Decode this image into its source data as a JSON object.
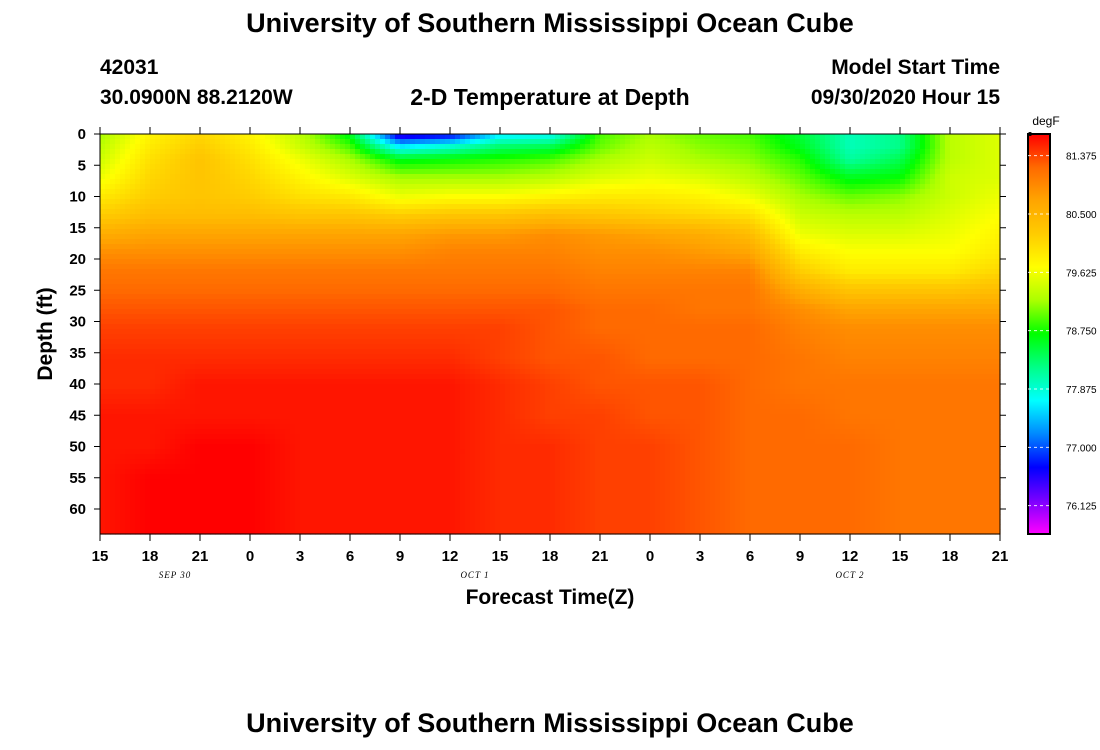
{
  "header": {
    "title_top": "University of Southern Mississippi Ocean Cube",
    "title_bottom": "University of Southern Mississippi Ocean Cube",
    "station_id": "42031",
    "station_location": "30.0900N 88.2120W",
    "plot_title": "2-D Temperature at Depth",
    "model_start_label": "Model Start Time",
    "model_start_value": "09/30/2020 Hour 15"
  },
  "chart_data": {
    "type": "heatmap",
    "title": "2-D Temperature at Depth",
    "xlabel": "Forecast Time(Z)",
    "ylabel": "Depth (ft)",
    "x_hours": [
      0,
      3,
      6,
      9,
      12,
      15,
      18,
      21,
      24,
      27,
      30,
      33,
      36,
      39,
      42,
      45,
      48,
      51,
      54
    ],
    "x_tick_labels": [
      "15",
      "18",
      "21",
      "0",
      "3",
      "6",
      "9",
      "12",
      "15",
      "18",
      "21",
      "0",
      "3",
      "6",
      "9",
      "12",
      "15",
      "18",
      "21"
    ],
    "day_labels": [
      {
        "hour": 4.5,
        "text": "SEP 30"
      },
      {
        "hour": 22.5,
        "text": "OCT 1"
      },
      {
        "hour": 45,
        "text": "OCT 2"
      }
    ],
    "y_ticks": [
      0,
      5,
      10,
      15,
      20,
      25,
      30,
      35,
      40,
      45,
      50,
      55,
      60
    ],
    "ylim": [
      0,
      64
    ],
    "xlim": [
      0,
      54
    ],
    "colorbar": {
      "unit": "degF",
      "min": 75.7,
      "max": 81.7,
      "tick_labels": [
        "81.375",
        "80.500",
        "79.625",
        "78.750",
        "77.875",
        "77.000",
        "76.125"
      ],
      "tick_values": [
        81.375,
        80.5,
        79.625,
        78.75,
        77.875,
        77.0,
        76.125
      ],
      "colors": [
        "#ff00ff",
        "#7a00ff",
        "#0000ff",
        "#0088ff",
        "#00ffff",
        "#00ff88",
        "#00ff00",
        "#aaff00",
        "#ffff00",
        "#ffcc00",
        "#ffa500",
        "#ff6a00",
        "#ff0000"
      ]
    },
    "grid_depths": [
      0,
      2,
      4,
      7,
      10,
      13,
      16,
      19,
      22,
      25,
      28,
      31,
      36,
      40,
      45,
      50,
      55,
      60,
      64
    ],
    "temperature_degF": [
      [
        79.2,
        79.8,
        80.1,
        79.8,
        79.3,
        78.6,
        76.4,
        76.6,
        77.6,
        77.7,
        78.9,
        79.2,
        79.0,
        78.9,
        78.5,
        78.0,
        78.2,
        79.3,
        79.5
      ],
      [
        79.3,
        79.9,
        80.2,
        79.9,
        79.4,
        78.9,
        77.6,
        77.9,
        78.3,
        78.4,
        79.0,
        79.3,
        79.1,
        79.0,
        78.6,
        78.0,
        78.2,
        79.3,
        79.5
      ],
      [
        79.4,
        80.0,
        80.3,
        80.0,
        79.6,
        79.2,
        78.6,
        78.7,
        78.8,
        78.9,
        79.2,
        79.4,
        79.2,
        79.1,
        78.8,
        78.1,
        78.4,
        79.3,
        79.5
      ],
      [
        79.6,
        80.1,
        80.3,
        80.1,
        79.8,
        79.5,
        79.2,
        79.2,
        79.2,
        79.3,
        79.5,
        79.6,
        79.5,
        79.3,
        79.0,
        78.6,
        78.7,
        79.4,
        79.5
      ],
      [
        79.9,
        80.2,
        80.3,
        80.2,
        80.0,
        79.9,
        79.6,
        79.7,
        79.7,
        79.8,
        79.9,
        79.9,
        79.8,
        79.6,
        79.2,
        79.0,
        79.1,
        79.4,
        79.6
      ],
      [
        80.2,
        80.4,
        80.4,
        80.4,
        80.3,
        80.3,
        80.2,
        80.3,
        80.3,
        80.4,
        80.3,
        80.2,
        80.1,
        80.0,
        79.4,
        79.3,
        79.3,
        79.5,
        79.7
      ],
      [
        80.6,
        80.7,
        80.7,
        80.7,
        80.7,
        80.7,
        80.7,
        80.8,
        80.8,
        80.9,
        80.8,
        80.7,
        80.6,
        80.4,
        79.6,
        79.5,
        79.5,
        79.6,
        79.8
      ],
      [
        80.9,
        80.9,
        80.9,
        80.9,
        80.9,
        80.9,
        80.9,
        81.0,
        81.0,
        81.0,
        80.9,
        80.9,
        80.8,
        80.7,
        79.9,
        79.7,
        79.7,
        79.7,
        79.9
      ],
      [
        81.1,
        81.1,
        81.1,
        81.1,
        81.1,
        81.1,
        81.1,
        81.1,
        81.1,
        81.1,
        81.0,
        81.0,
        81.0,
        81.0,
        80.2,
        79.9,
        79.9,
        79.9,
        80.1
      ],
      [
        81.2,
        81.2,
        81.2,
        81.2,
        81.2,
        81.2,
        81.2,
        81.2,
        81.2,
        81.2,
        81.1,
        81.1,
        81.1,
        81.1,
        80.6,
        80.3,
        80.3,
        80.3,
        80.4
      ],
      [
        81.3,
        81.3,
        81.3,
        81.3,
        81.3,
        81.3,
        81.3,
        81.3,
        81.3,
        81.3,
        81.2,
        81.2,
        81.1,
        81.1,
        80.9,
        80.7,
        80.7,
        80.7,
        80.7
      ],
      [
        81.4,
        81.4,
        81.4,
        81.4,
        81.4,
        81.4,
        81.4,
        81.4,
        81.4,
        81.3,
        81.2,
        81.2,
        81.2,
        81.2,
        81.0,
        80.9,
        80.9,
        80.9,
        80.9
      ],
      [
        81.5,
        81.5,
        81.5,
        81.5,
        81.5,
        81.5,
        81.5,
        81.5,
        81.4,
        81.3,
        81.3,
        81.2,
        81.2,
        81.2,
        81.1,
        81.0,
        81.0,
        81.0,
        81.0
      ],
      [
        81.5,
        81.5,
        81.6,
        81.6,
        81.6,
        81.6,
        81.6,
        81.6,
        81.5,
        81.4,
        81.3,
        81.3,
        81.3,
        81.2,
        81.1,
        81.1,
        81.1,
        81.1,
        81.1
      ],
      [
        81.6,
        81.6,
        81.6,
        81.6,
        81.6,
        81.6,
        81.6,
        81.6,
        81.5,
        81.4,
        81.4,
        81.3,
        81.3,
        81.2,
        81.2,
        81.1,
        81.1,
        81.1,
        81.1
      ],
      [
        81.6,
        81.6,
        81.7,
        81.7,
        81.6,
        81.6,
        81.6,
        81.6,
        81.5,
        81.5,
        81.4,
        81.4,
        81.3,
        81.2,
        81.2,
        81.2,
        81.1,
        81.1,
        81.1
      ],
      [
        81.6,
        81.7,
        81.7,
        81.7,
        81.6,
        81.6,
        81.6,
        81.6,
        81.5,
        81.5,
        81.4,
        81.4,
        81.3,
        81.2,
        81.2,
        81.2,
        81.1,
        81.1,
        81.1
      ],
      [
        81.6,
        81.7,
        81.7,
        81.7,
        81.6,
        81.6,
        81.6,
        81.6,
        81.5,
        81.5,
        81.4,
        81.4,
        81.3,
        81.2,
        81.2,
        81.2,
        81.1,
        81.1,
        81.1
      ],
      [
        81.6,
        81.7,
        81.7,
        81.7,
        81.6,
        81.6,
        81.6,
        81.6,
        81.5,
        81.5,
        81.4,
        81.4,
        81.3,
        81.2,
        81.2,
        81.2,
        81.1,
        81.1,
        81.1
      ]
    ]
  }
}
